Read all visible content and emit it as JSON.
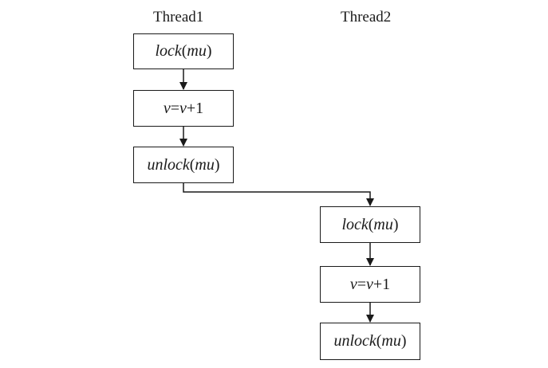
{
  "diagram": {
    "threads": [
      {
        "label": "Thread1",
        "steps": [
          {
            "func": "lock",
            "arg": "mu"
          },
          {
            "expr_lhs": "v",
            "expr_op1": "=",
            "expr_mid": "v",
            "expr_op2": "+",
            "expr_num": "1"
          },
          {
            "func": "unlock",
            "arg": "mu"
          }
        ]
      },
      {
        "label": "Thread2",
        "steps": [
          {
            "func": "lock",
            "arg": "mu"
          },
          {
            "expr_lhs": "v",
            "expr_op1": "=",
            "expr_mid": "v",
            "expr_op2": "+",
            "expr_num": "1"
          },
          {
            "func": "unlock",
            "arg": "mu"
          }
        ]
      }
    ],
    "paren_open": "(",
    "paren_close": ")",
    "line_color": "#1a1a1a"
  }
}
